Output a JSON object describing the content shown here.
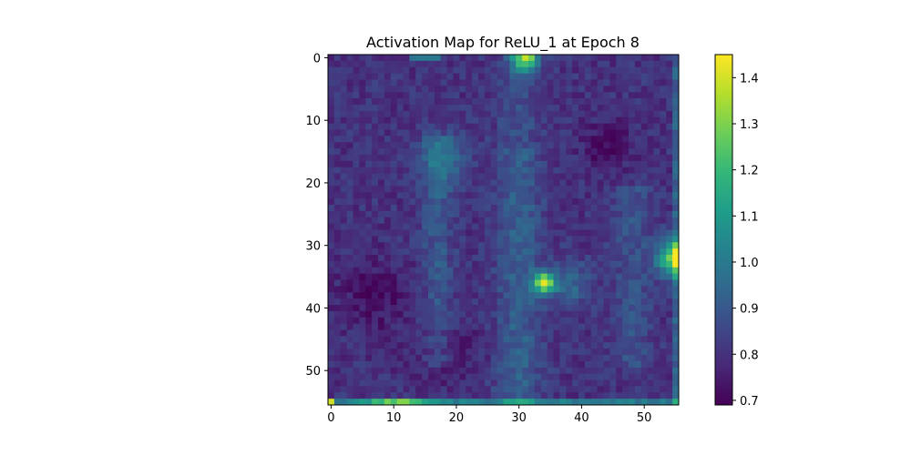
{
  "chart_data": {
    "type": "heatmap",
    "title": "Activation Map for ReLU_1 at Epoch 8",
    "xlabel": "",
    "ylabel": "",
    "rows": 56,
    "cols": 56,
    "x_ticks": [
      0,
      10,
      20,
      30,
      40,
      50
    ],
    "y_ticks": [
      0,
      10,
      20,
      30,
      40,
      50
    ],
    "colormap": "viridis",
    "colorbar": {
      "vmin": 0.69,
      "vmax": 1.45,
      "ticks": [
        0.7,
        0.8,
        0.9,
        1.0,
        1.1,
        1.2,
        1.3,
        1.4
      ],
      "tick_labels": [
        "0.7",
        "0.8",
        "0.9",
        "1.0",
        "1.1",
        "1.2",
        "1.3",
        "1.4"
      ]
    },
    "grid": false
  }
}
